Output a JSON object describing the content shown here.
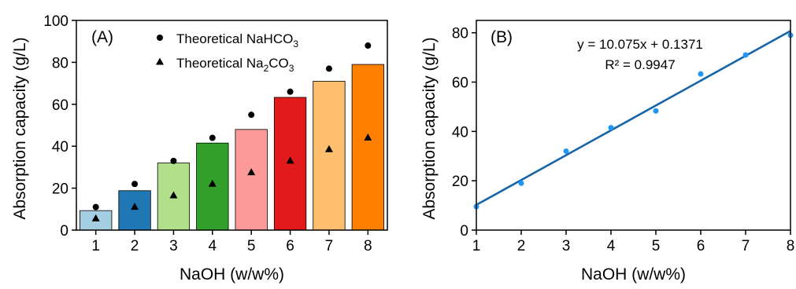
{
  "chart_data": [
    {
      "type": "bar",
      "panel_label": "(A)",
      "xlabel": "NaOH (w/w%)",
      "ylabel": "Absorption capacity (g/L)",
      "categories": [
        "1",
        "2",
        "3",
        "4",
        "5",
        "6",
        "7",
        "8"
      ],
      "values": [
        9.3,
        18.8,
        32,
        41.5,
        48,
        63.3,
        71,
        79
      ],
      "bar_colors": [
        "#a6cee3",
        "#1f78b4",
        "#b2df8a",
        "#33a02c",
        "#fb9a99",
        "#e31a1c",
        "#fdbf6f",
        "#ff7f00"
      ],
      "ylim": [
        0,
        100
      ],
      "yticks": [
        "0",
        "20",
        "40",
        "60",
        "80",
        "100"
      ],
      "series": [
        {
          "name": "Theoretical NaHCO3",
          "label_parts": [
            "Theoretical NaHCO",
            "3"
          ],
          "marker": "circle",
          "values": [
            11,
            22,
            33,
            44,
            55,
            66,
            77,
            88
          ]
        },
        {
          "name": "Theoretical Na2CO3",
          "label_parts": [
            "Theoretical Na",
            "2",
            "CO",
            "3"
          ],
          "marker": "triangle",
          "values": [
            5.5,
            11,
            16.5,
            22,
            27.5,
            33,
            38.5,
            44
          ]
        }
      ],
      "legend_position": "top-center",
      "grid": false
    },
    {
      "type": "scatter",
      "panel_label": "(B)",
      "xlabel": "NaOH (w/w%)",
      "ylabel": "Absorption capacity (g/L)",
      "x": [
        1,
        2,
        3,
        4,
        5,
        6,
        7,
        8
      ],
      "y": [
        9.5,
        19,
        32,
        41.5,
        48.3,
        63.3,
        71,
        79
      ],
      "point_color": "#2196f3",
      "fit_line": {
        "slope": 10.075,
        "intercept": 0.1371,
        "color": "#1565a8"
      },
      "equation": "y = 10.075x + 0.1371",
      "r_squared": "R² = 0.9947",
      "xlim": [
        1,
        8
      ],
      "ylim": [
        0,
        85
      ],
      "xticks": [
        "1",
        "2",
        "3",
        "4",
        "5",
        "6",
        "7",
        "8"
      ],
      "yticks": [
        "0",
        "20",
        "40",
        "60",
        "80"
      ],
      "grid": false
    }
  ]
}
